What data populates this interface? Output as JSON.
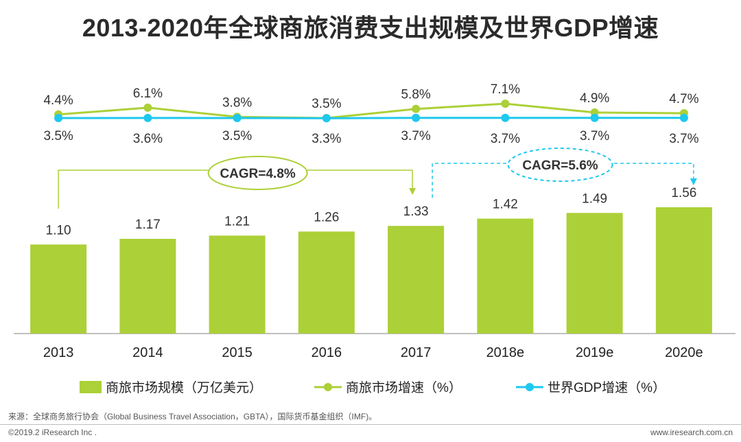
{
  "title": "2013-2020年全球商旅消费支出规模及世界GDP增速",
  "chart_data": {
    "type": "bar+line",
    "categories": [
      "2013",
      "2014",
      "2015",
      "2016",
      "2017",
      "2018e",
      "2019e",
      "2020e"
    ],
    "series": [
      {
        "name": "商旅市场规模（万亿美元）",
        "kind": "bar",
        "color": "#acd037",
        "values": [
          1.1,
          1.17,
          1.21,
          1.26,
          1.33,
          1.42,
          1.49,
          1.56
        ],
        "labels": [
          "1.10",
          "1.17",
          "1.21",
          "1.26",
          "1.33",
          "1.42",
          "1.49",
          "1.56"
        ]
      },
      {
        "name": "商旅市场增速（%）",
        "kind": "line",
        "color": "#acd037",
        "values": [
          4.4,
          6.1,
          3.8,
          3.5,
          5.8,
          7.1,
          4.9,
          4.7
        ],
        "labels": [
          "4.4%",
          "6.1%",
          "3.8%",
          "3.5%",
          "5.8%",
          "7.1%",
          "4.9%",
          "4.7%"
        ]
      },
      {
        "name": "世界GDP增速（%）",
        "kind": "line",
        "color": "#1ec8ee",
        "values": [
          3.5,
          3.6,
          3.5,
          3.3,
          3.7,
          3.7,
          3.7,
          3.7
        ],
        "labels": [
          "3.5%",
          "3.6%",
          "3.5%",
          "3.3%",
          "3.7%",
          "3.7%",
          "3.7%",
          "3.7%"
        ]
      }
    ],
    "annotations": [
      {
        "text": "CAGR=4.8%",
        "from": "2013",
        "to": "2017",
        "style": "solid",
        "color": "#acd037"
      },
      {
        "text": "CAGR=5.6%",
        "from": "2017",
        "to": "2020e",
        "style": "dashed",
        "color": "#1ec8ee"
      }
    ]
  },
  "source": "来源：全球商务旅行协会（Global Business Travel Association，GBTA），国际货币基金组织（IMF)。",
  "copyright": "©2019.2 iResearch Inc .",
  "website": "www.iresearch.com.cn"
}
